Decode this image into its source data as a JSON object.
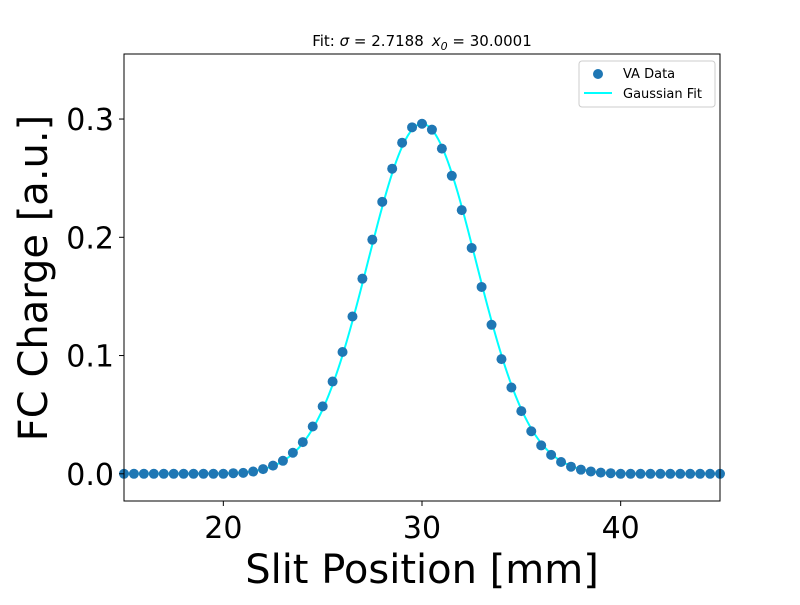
{
  "chart_data": {
    "type": "scatter",
    "title": "Fit: σ = 2.7188   x0 = 30.0001",
    "title_parts": {
      "prefix": "Fit: ",
      "sigma_symbol": "σ",
      "sigma_text": " = 2.7188",
      "x0_base": "x",
      "x0_sub": "0",
      "x0_text": " = 30.0001"
    },
    "xlabel": "Slit Position [mm]",
    "ylabel": "FC Charge [a.u.]",
    "xlim": [
      15,
      45
    ],
    "ylim": [
      -0.023,
      0.355
    ],
    "x_ticks": [
      {
        "value": 20,
        "label": "20"
      },
      {
        "value": 30,
        "label": "30"
      },
      {
        "value": 40,
        "label": "40"
      }
    ],
    "y_ticks": [
      {
        "value": 0.0,
        "label": "0.0"
      },
      {
        "value": 0.1,
        "label": "0.1"
      },
      {
        "value": 0.2,
        "label": "0.2"
      },
      {
        "value": 0.3,
        "label": "0.3"
      }
    ],
    "legend": {
      "placement": "top-right",
      "entries": [
        "VA Data",
        "Gaussian Fit"
      ]
    },
    "grid": false,
    "series": [
      {
        "name": "VA Data",
        "kind": "scatter",
        "color": "#1f77b4",
        "x": [
          15.0,
          15.5,
          16.0,
          16.5,
          17.0,
          17.5,
          18.0,
          18.5,
          19.0,
          19.5,
          20.0,
          20.5,
          21.0,
          21.5,
          22.0,
          22.5,
          23.0,
          23.5,
          24.0,
          24.5,
          25.0,
          25.5,
          26.0,
          26.5,
          27.0,
          27.5,
          28.0,
          28.5,
          29.0,
          29.5,
          30.0,
          30.5,
          31.0,
          31.5,
          32.0,
          32.5,
          33.0,
          33.5,
          34.0,
          34.5,
          35.0,
          35.5,
          36.0,
          36.5,
          37.0,
          37.5,
          38.0,
          38.5,
          39.0,
          39.5,
          40.0,
          40.5,
          41.0,
          41.5,
          42.0,
          42.5,
          43.0,
          43.5,
          44.0,
          44.5,
          45.0
        ],
        "y": [
          0.0,
          0.0,
          0.0,
          0.0,
          0.0,
          0.0,
          0.0,
          0.0,
          0.0,
          0.0,
          0.0,
          0.0005,
          0.0008,
          0.0019,
          0.004,
          0.0069,
          0.011,
          0.0178,
          0.0268,
          0.04,
          0.057,
          0.078,
          0.103,
          0.133,
          0.165,
          0.198,
          0.23,
          0.258,
          0.28,
          0.293,
          0.296,
          0.291,
          0.275,
          0.252,
          0.223,
          0.191,
          0.158,
          0.126,
          0.097,
          0.073,
          0.053,
          0.036,
          0.024,
          0.016,
          0.01,
          0.006,
          0.0035,
          0.002,
          0.001,
          0.0005,
          0.0,
          0.0,
          0.0,
          0.0,
          0.0,
          0.0,
          0.0,
          0.0,
          0.0,
          0.0,
          0.0
        ]
      },
      {
        "name": "Gaussian Fit",
        "kind": "line",
        "color": "#00ffff",
        "model": "gaussian",
        "amplitude": 0.296,
        "center": 30.0001,
        "sigma": 2.7188
      }
    ]
  }
}
